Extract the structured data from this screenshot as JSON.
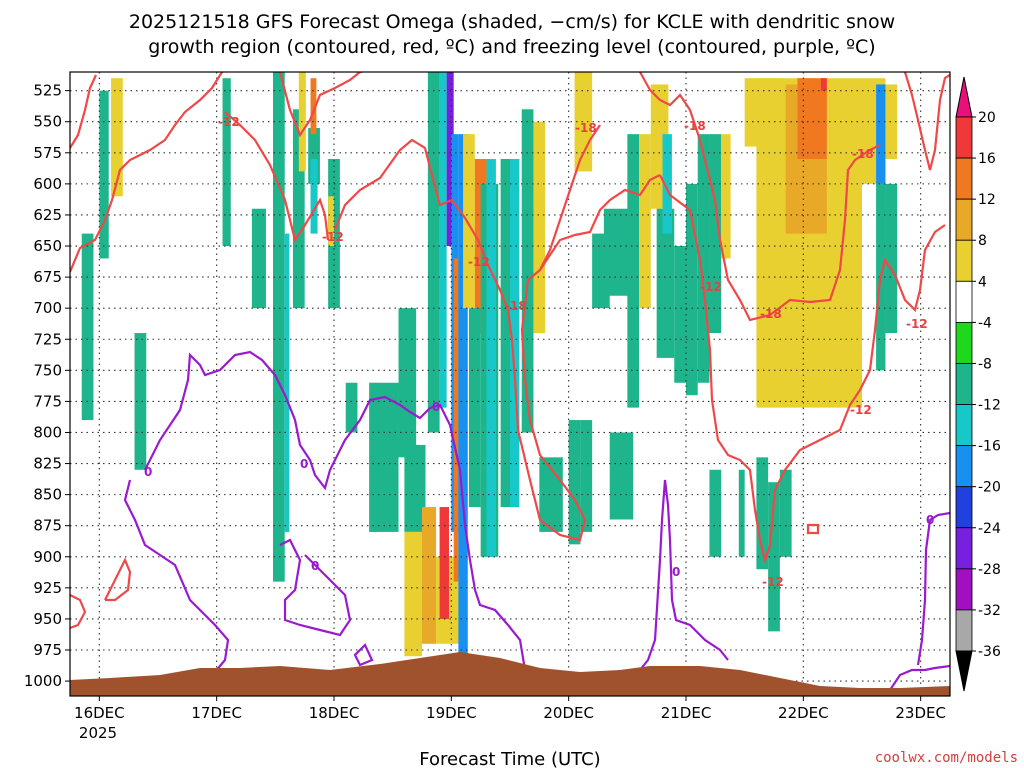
{
  "title_line1": "2025121518 GFS Forecast Omega (shaded, −cm/s) for KCLE with dendritic snow",
  "title_line2": "growth region (contoured, red, ºC) and freezing level (contoured, purple, ºC)",
  "credit": "coolwx.com/models",
  "chart_data": {
    "type": "heatmap",
    "xlabel": "Forecast Time (UTC)",
    "x_ticks": [
      "16DEC",
      "17DEC",
      "18DEC",
      "19DEC",
      "20DEC",
      "21DEC",
      "22DEC",
      "23DEC"
    ],
    "x_year_label": "2025",
    "x_range_days": [
      15.75,
      23.25
    ],
    "y_ticks": [
      525,
      550,
      575,
      600,
      625,
      650,
      675,
      700,
      725,
      750,
      775,
      800,
      825,
      850,
      875,
      900,
      925,
      950,
      975,
      1000
    ],
    "y_range_hpa": [
      510,
      1012
    ],
    "colorbar": {
      "ticks": [
        "20",
        "16",
        "12",
        "8",
        "4",
        "-4",
        "-8",
        "-12",
        "-16",
        "-20",
        "-24",
        "-28",
        "-32",
        "-36"
      ],
      "colors": [
        "#e8107a",
        "#f03838",
        "#f07820",
        "#e8a828",
        "#e8d030",
        "#ffffff",
        "#1ed81e",
        "#1eb48c",
        "#18c8c8",
        "#1890f0",
        "#2040e0",
        "#7820e0",
        "#a010c0",
        "#a8a8a8",
        "#000000"
      ]
    },
    "contour_labels_red": [
      "-12",
      "-12",
      "-18",
      "-18",
      "-12",
      "-12",
      "-18",
      "-18",
      "-12",
      "-12",
      "-12"
    ],
    "contour_labels_purple": [
      "0",
      "0",
      "0",
      "0",
      "0",
      "0"
    ],
    "omega_shading": [
      {
        "t": [
          15.85,
          15.95
        ],
        "p": [
          640,
          790
        ],
        "v": -8
      },
      {
        "t": [
          16.0,
          16.08
        ],
        "p": [
          525,
          660
        ],
        "v": -8
      },
      {
        "t": [
          16.1,
          16.2
        ],
        "p": [
          515,
          610
        ],
        "v": 6
      },
      {
        "t": [
          16.3,
          16.4
        ],
        "p": [
          720,
          830
        ],
        "v": -8
      },
      {
        "t": [
          17.05,
          17.12
        ],
        "p": [
          515,
          650
        ],
        "v": -8
      },
      {
        "t": [
          17.3,
          17.42
        ],
        "p": [
          620,
          700
        ],
        "v": -8
      },
      {
        "t": [
          17.48,
          17.58
        ],
        "p": [
          510,
          920
        ],
        "v": -8
      },
      {
        "t": [
          17.58,
          17.62
        ],
        "p": [
          640,
          880
        ],
        "v": -12
      },
      {
        "t": [
          17.65,
          17.75
        ],
        "p": [
          540,
          700
        ],
        "v": -8
      },
      {
        "t": [
          17.7,
          17.76
        ],
        "p": [
          510,
          590
        ],
        "v": 6
      },
      {
        "t": [
          17.78,
          17.88
        ],
        "p": [
          555,
          600
        ],
        "v": -8
      },
      {
        "t": [
          17.8,
          17.86
        ],
        "p": [
          580,
          640
        ],
        "v": -12
      },
      {
        "t": [
          17.8,
          17.85
        ],
        "p": [
          515,
          560
        ],
        "v": 14
      },
      {
        "t": [
          17.95,
          18.05
        ],
        "p": [
          580,
          700
        ],
        "v": -8
      },
      {
        "t": [
          17.95,
          18.0
        ],
        "p": [
          610,
          650
        ],
        "v": 6
      },
      {
        "t": [
          18.1,
          18.2
        ],
        "p": [
          760,
          800
        ],
        "v": -8
      },
      {
        "t": [
          18.3,
          18.4
        ],
        "p": [
          760,
          880
        ],
        "v": 6
      },
      {
        "t": [
          18.3,
          18.55
        ],
        "p": [
          760,
          880
        ],
        "v": -8
      },
      {
        "t": [
          18.55,
          18.7
        ],
        "p": [
          700,
          820
        ],
        "v": -8
      },
      {
        "t": [
          18.6,
          18.78
        ],
        "p": [
          810,
          880
        ],
        "v": -8
      },
      {
        "t": [
          18.6,
          18.75
        ],
        "p": [
          880,
          980
        ],
        "v": 6
      },
      {
        "t": [
          18.75,
          18.87
        ],
        "p": [
          860,
          970
        ],
        "v": 8
      },
      {
        "t": [
          18.87,
          19.1
        ],
        "p": [
          900,
          970
        ],
        "v": 6
      },
      {
        "t": [
          18.9,
          18.98
        ],
        "p": [
          860,
          950
        ],
        "v": 16
      },
      {
        "t": [
          18.8,
          18.9
        ],
        "p": [
          510,
          800
        ],
        "v": -8
      },
      {
        "t": [
          18.9,
          18.96
        ],
        "p": [
          510,
          780
        ],
        "v": -12
      },
      {
        "t": [
          18.96,
          19.02
        ],
        "p": [
          510,
          650
        ],
        "v": -24
      },
      {
        "t": [
          19.0,
          19.06
        ],
        "p": [
          560,
          880
        ],
        "v": -16
      },
      {
        "t": [
          19.02,
          19.06
        ],
        "p": [
          660,
          920
        ],
        "v": 12
      },
      {
        "t": [
          19.06,
          19.14
        ],
        "p": [
          560,
          980
        ],
        "v": -16
      },
      {
        "t": [
          19.1,
          19.2
        ],
        "p": [
          560,
          700
        ],
        "v": 6
      },
      {
        "t": [
          19.2,
          19.3
        ],
        "p": [
          580,
          720
        ],
        "v": 12
      },
      {
        "t": [
          19.15,
          19.25
        ],
        "p": [
          700,
          860
        ],
        "v": -8
      },
      {
        "t": [
          19.25,
          19.4
        ],
        "p": [
          600,
          900
        ],
        "v": -8
      },
      {
        "t": [
          19.3,
          19.38
        ],
        "p": [
          580,
          900
        ],
        "v": -12
      },
      {
        "t": [
          19.42,
          19.5
        ],
        "p": [
          580,
          860
        ],
        "v": -8
      },
      {
        "t": [
          19.5,
          19.58
        ],
        "p": [
          580,
          860
        ],
        "v": -12
      },
      {
        "t": [
          19.6,
          19.7
        ],
        "p": [
          540,
          800
        ],
        "v": -8
      },
      {
        "t": [
          19.7,
          19.8
        ],
        "p": [
          550,
          720
        ],
        "v": 6
      },
      {
        "t": [
          19.75,
          19.95
        ],
        "p": [
          820,
          880
        ],
        "v": -8
      },
      {
        "t": [
          20.0,
          20.1
        ],
        "p": [
          790,
          890
        ],
        "v": -8
      },
      {
        "t": [
          20.05,
          20.2
        ],
        "p": [
          510,
          590
        ],
        "v": 6
      },
      {
        "t": [
          20.1,
          20.2
        ],
        "p": [
          790,
          880
        ],
        "v": -8
      },
      {
        "t": [
          20.2,
          20.35
        ],
        "p": [
          640,
          700
        ],
        "v": -8
      },
      {
        "t": [
          20.3,
          20.55
        ],
        "p": [
          620,
          690
        ],
        "v": -8
      },
      {
        "t": [
          20.35,
          20.55
        ],
        "p": [
          800,
          870
        ],
        "v": -8
      },
      {
        "t": [
          20.5,
          20.6
        ],
        "p": [
          560,
          780
        ],
        "v": -8
      },
      {
        "t": [
          20.6,
          20.7
        ],
        "p": [
          560,
          700
        ],
        "v": 6
      },
      {
        "t": [
          20.7,
          20.85
        ],
        "p": [
          520,
          620
        ],
        "v": 6
      },
      {
        "t": [
          20.75,
          20.9
        ],
        "p": [
          620,
          740
        ],
        "v": -8
      },
      {
        "t": [
          20.8,
          20.88
        ],
        "p": [
          560,
          640
        ],
        "v": -12
      },
      {
        "t": [
          20.9,
          21.0
        ],
        "p": [
          650,
          760
        ],
        "v": -8
      },
      {
        "t": [
          21.0,
          21.1
        ],
        "p": [
          600,
          770
        ],
        "v": -8
      },
      {
        "t": [
          21.1,
          21.2
        ],
        "p": [
          560,
          760
        ],
        "v": -8
      },
      {
        "t": [
          21.2,
          21.3
        ],
        "p": [
          560,
          720
        ],
        "v": -8
      },
      {
        "t": [
          21.2,
          21.3
        ],
        "p": [
          830,
          900
        ],
        "v": -8
      },
      {
        "t": [
          21.3,
          21.38
        ],
        "p": [
          560,
          660
        ],
        "v": 6
      },
      {
        "t": [
          21.45,
          21.5
        ],
        "p": [
          830,
          900
        ],
        "v": -8
      },
      {
        "t": [
          21.6,
          21.7
        ],
        "p": [
          820,
          910
        ],
        "v": -8
      },
      {
        "t": [
          21.7,
          21.8
        ],
        "p": [
          840,
          960
        ],
        "v": -8
      },
      {
        "t": [
          21.8,
          21.9
        ],
        "p": [
          830,
          900
        ],
        "v": -8
      },
      {
        "t": [
          21.5,
          21.8
        ],
        "p": [
          515,
          570
        ],
        "v": 6
      },
      {
        "t": [
          21.6,
          22.5
        ],
        "p": [
          515,
          780
        ],
        "v": 6
      },
      {
        "t": [
          21.85,
          22.2
        ],
        "p": [
          520,
          640
        ],
        "v": 10
      },
      {
        "t": [
          21.95,
          22.2
        ],
        "p": [
          515,
          580
        ],
        "v": 14
      },
      {
        "t": [
          22.15,
          22.2
        ],
        "p": [
          515,
          525
        ],
        "v": 18
      },
      {
        "t": [
          22.5,
          22.7
        ],
        "p": [
          515,
          600
        ],
        "v": 6
      },
      {
        "t": [
          22.62,
          22.7
        ],
        "p": [
          520,
          600
        ],
        "v": -16
      },
      {
        "t": [
          22.62,
          22.7
        ],
        "p": [
          600,
          750
        ],
        "v": -8
      },
      {
        "t": [
          22.7,
          22.8
        ],
        "p": [
          520,
          580
        ],
        "v": 6
      },
      {
        "t": [
          22.7,
          22.8
        ],
        "p": [
          600,
          720
        ],
        "v": -8
      }
    ],
    "terrain_color": "#a0522d",
    "red_contour_color": "#f04848",
    "purple_contour_color": "#9a1ad0"
  }
}
